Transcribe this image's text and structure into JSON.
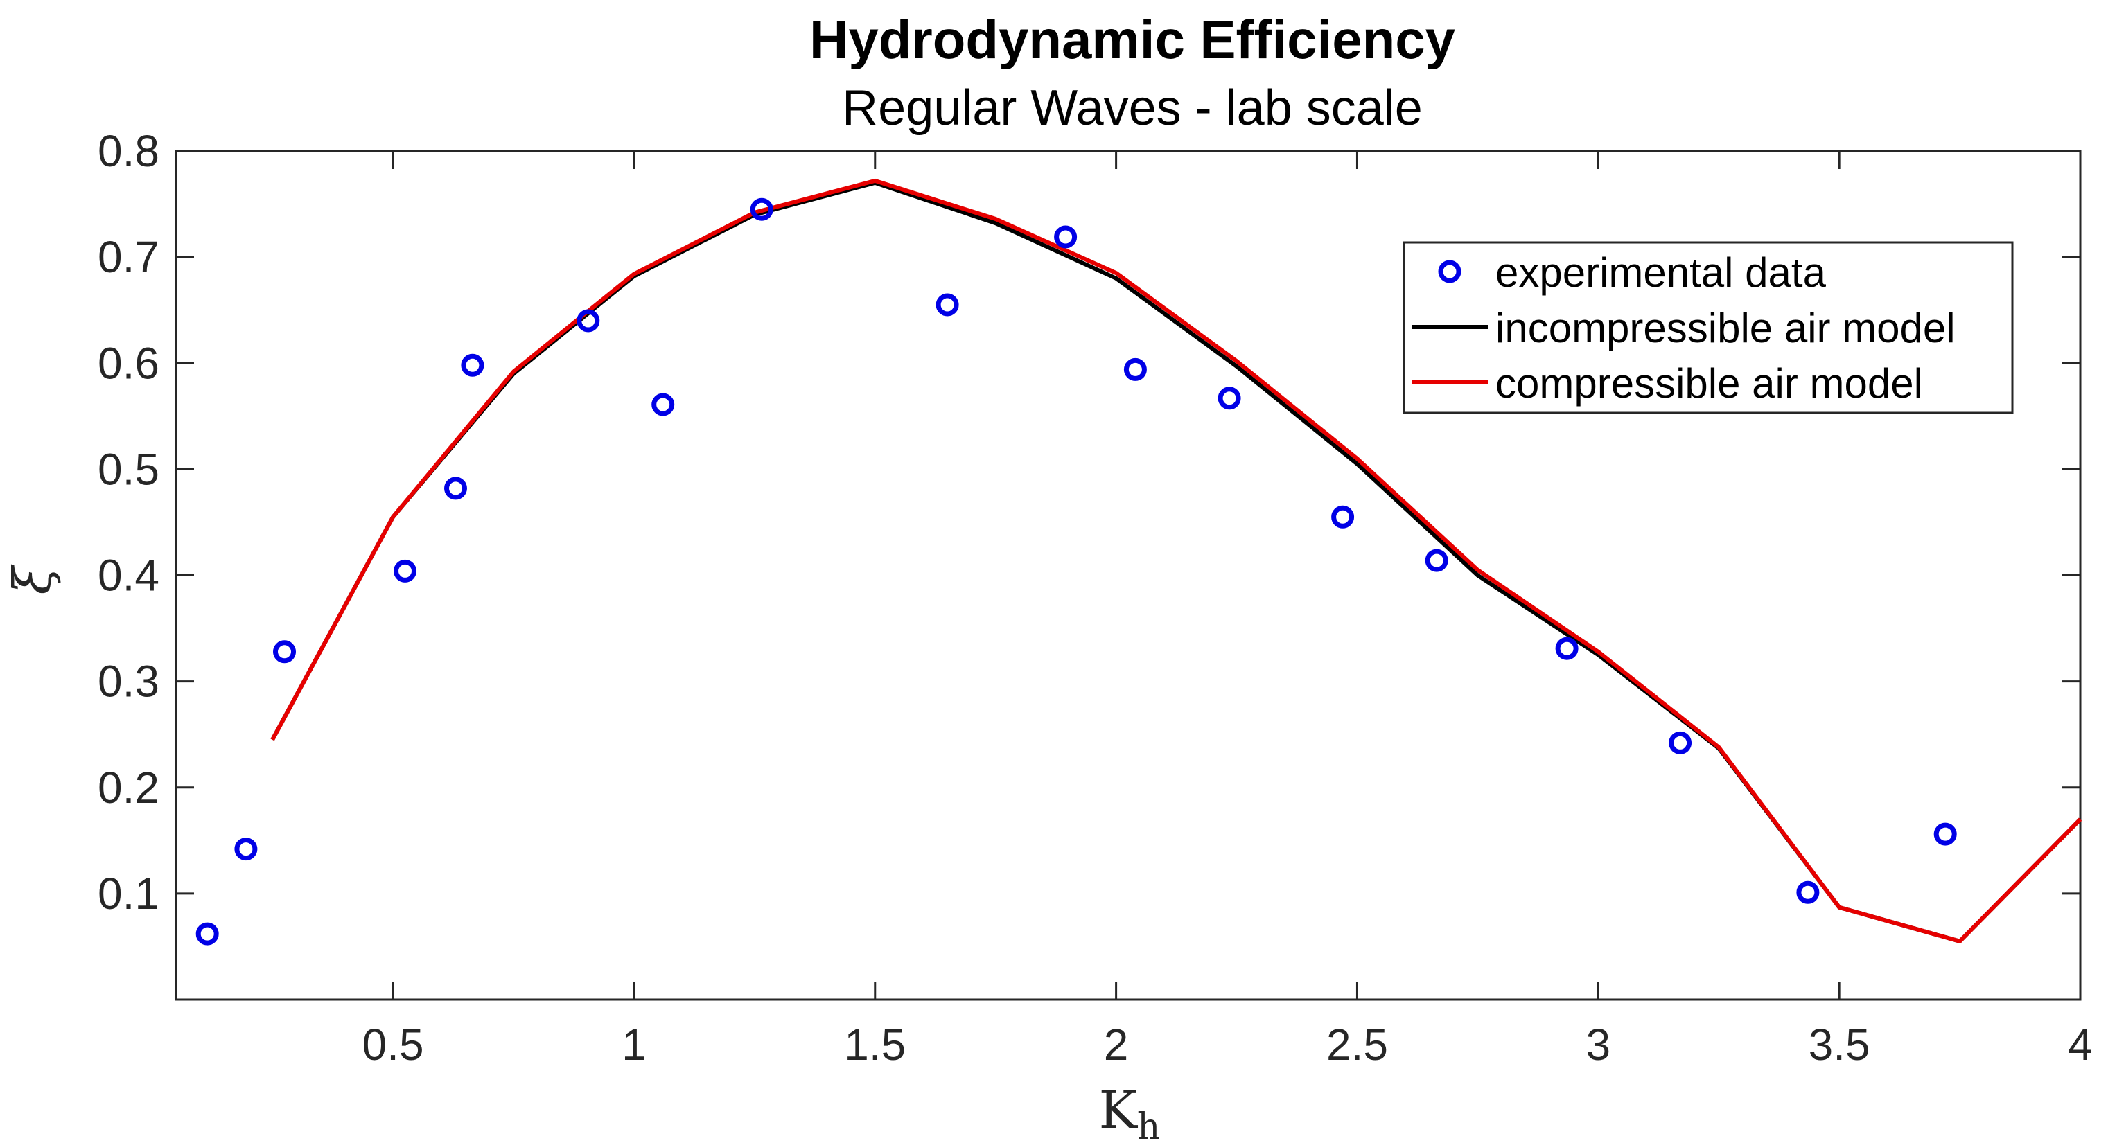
{
  "chart_data": {
    "type": "line",
    "title": "Hydrodynamic Efficiency",
    "subtitle": "Regular Waves - lab scale",
    "xlabel": "K",
    "xlabel_subscript": "h",
    "ylabel": "ξ",
    "xlim": [
      0.05,
      4.0
    ],
    "ylim": [
      0.0,
      0.8
    ],
    "xticks": [
      0.5,
      1,
      1.5,
      2,
      2.5,
      3,
      3.5,
      4
    ],
    "xtick_labels": [
      "0.5",
      "1",
      "1.5",
      "2",
      "2.5",
      "3",
      "3.5",
      "4"
    ],
    "yticks": [
      0.1,
      0.2,
      0.3,
      0.4,
      0.5,
      0.6,
      0.7,
      0.8
    ],
    "ytick_labels": [
      "0.1",
      "0.2",
      "0.3",
      "0.4",
      "0.5",
      "0.6",
      "0.7",
      "0.8"
    ],
    "grid": false,
    "legend_position": "top-right",
    "series": [
      {
        "name": "experimental data",
        "kind": "scatter",
        "marker": "circle-open",
        "color": "#0000e6",
        "x": [
          0.115,
          0.195,
          0.275,
          0.525,
          0.63,
          0.665,
          0.905,
          1.06,
          1.265,
          1.65,
          1.895,
          2.04,
          2.235,
          2.47,
          2.665,
          2.935,
          3.17,
          3.435,
          3.72
        ],
        "y": [
          0.062,
          0.142,
          0.328,
          0.404,
          0.482,
          0.598,
          0.64,
          0.561,
          0.745,
          0.655,
          0.719,
          0.594,
          0.567,
          0.455,
          0.414,
          0.331,
          0.242,
          0.101,
          0.156
        ]
      },
      {
        "name": "incompressible air model",
        "kind": "line",
        "color": "#000000",
        "x": [
          0.25,
          0.5,
          0.75,
          1.0,
          1.25,
          1.5,
          1.75,
          2.0,
          2.25,
          2.5,
          2.75,
          3.0,
          3.25,
          3.5,
          3.75,
          4.0
        ],
        "y": [
          0.245,
          0.455,
          0.59,
          0.682,
          0.74,
          0.77,
          0.732,
          0.68,
          0.597,
          0.505,
          0.4,
          0.325,
          0.237,
          0.087,
          0.055,
          0.17
        ]
      },
      {
        "name": "compressible air model",
        "kind": "line",
        "color": "#e60000",
        "x": [
          0.25,
          0.5,
          0.75,
          1.0,
          1.25,
          1.5,
          1.75,
          2.0,
          2.25,
          2.5,
          2.75,
          3.0,
          3.25,
          3.5,
          3.75,
          4.0
        ],
        "y": [
          0.245,
          0.455,
          0.592,
          0.684,
          0.742,
          0.772,
          0.736,
          0.685,
          0.602,
          0.51,
          0.405,
          0.328,
          0.238,
          0.087,
          0.055,
          0.17
        ]
      }
    ]
  }
}
